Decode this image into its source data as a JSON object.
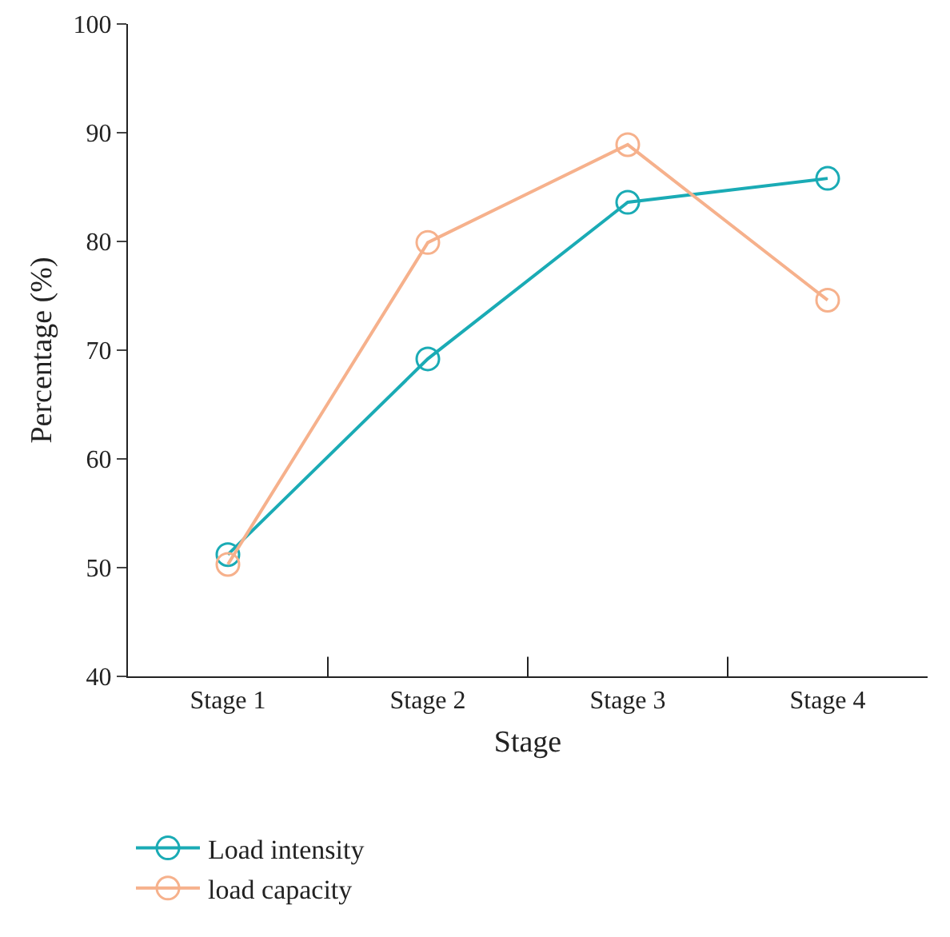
{
  "chart_data": {
    "type": "line",
    "xlabel": "Stage",
    "ylabel": "Percentage (%)",
    "categories": [
      "Stage 1",
      "Stage 2",
      "Stage 3",
      "Stage 4"
    ],
    "series": [
      {
        "name": "Load intensity",
        "color": "#1aabb5",
        "values": [
          51.2,
          69.2,
          83.6,
          85.8
        ]
      },
      {
        "name": "load capacity",
        "color": "#f6b18c",
        "values": [
          50.3,
          79.9,
          88.9,
          74.6
        ]
      }
    ],
    "ylim": [
      40,
      100
    ],
    "yticks": [
      40,
      50,
      60,
      70,
      80,
      90,
      100
    ],
    "grid": false,
    "legend": "bottom left",
    "marker": "circle",
    "line_style": "solid"
  }
}
